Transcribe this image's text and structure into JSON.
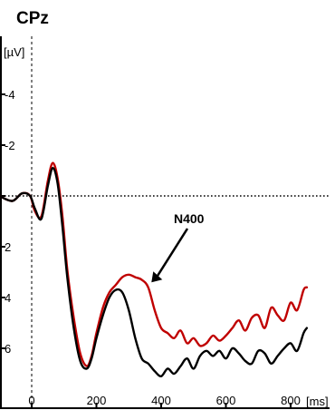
{
  "chart_data": {
    "type": "line",
    "title": "CPz",
    "ylabel": "[µV]",
    "xlabel": "[ms]",
    "y_inverted": true,
    "xlim": [
      -100,
      850
    ],
    "ylim": [
      -5,
      7.5
    ],
    "x_ticks": [
      0,
      200,
      400,
      600,
      800
    ],
    "x_tick_labels": [
      "0",
      "200",
      "400",
      "600",
      "800"
    ],
    "y_ticks": [
      -4,
      -2,
      0,
      2,
      4,
      6
    ],
    "y_tick_labels": [
      "-4",
      "-2",
      "",
      "2",
      "4",
      "6"
    ],
    "zero_line": "dotted",
    "onset_line": "dashed",
    "colors": {
      "red": "#c00000",
      "black": "#000000"
    },
    "annotation": {
      "text": "N400",
      "points_to": {
        "x": 370,
        "y": 3.4
      }
    },
    "series": [
      {
        "color": "#c00000",
        "x": [
          -100,
          -60,
          -30,
          -5,
          10,
          30,
          50,
          65,
          80,
          95,
          110,
          130,
          150,
          170,
          185,
          200,
          220,
          240,
          260,
          280,
          300,
          320,
          340,
          360,
          380,
          400,
          420,
          440,
          460,
          480,
          500,
          520,
          540,
          560,
          580,
          600,
          620,
          640,
          660,
          680,
          700,
          720,
          740,
          760,
          780,
          800,
          820,
          840,
          850
        ],
        "y": [
          0.0,
          0.2,
          -0.1,
          0.0,
          0.6,
          0.8,
          -0.6,
          -1.3,
          -0.7,
          0.8,
          2.9,
          4.8,
          6.2,
          6.7,
          6.3,
          5.4,
          4.4,
          3.8,
          3.5,
          3.2,
          3.1,
          3.2,
          3.3,
          3.6,
          4.5,
          5.2,
          5.4,
          5.6,
          5.3,
          5.8,
          5.6,
          5.9,
          5.8,
          5.5,
          5.7,
          5.5,
          5.2,
          4.9,
          5.3,
          4.8,
          4.7,
          5.2,
          4.4,
          4.7,
          4.9,
          4.2,
          4.5,
          3.7,
          3.6
        ]
      },
      {
        "color": "#000000",
        "x": [
          -100,
          -60,
          -30,
          -5,
          10,
          30,
          50,
          65,
          80,
          95,
          110,
          130,
          150,
          170,
          185,
          200,
          220,
          240,
          260,
          280,
          300,
          320,
          340,
          360,
          380,
          400,
          420,
          440,
          460,
          480,
          500,
          520,
          540,
          560,
          580,
          600,
          620,
          640,
          660,
          680,
          700,
          720,
          740,
          760,
          780,
          800,
          820,
          840,
          850
        ],
        "y": [
          0.0,
          0.2,
          -0.1,
          0.0,
          0.5,
          0.9,
          -0.4,
          -1.1,
          -0.5,
          1.2,
          3.2,
          5.2,
          6.5,
          6.8,
          6.4,
          5.6,
          4.7,
          4.0,
          3.7,
          3.8,
          4.5,
          5.6,
          6.4,
          6.6,
          6.9,
          7.1,
          6.8,
          7.0,
          6.7,
          6.4,
          6.8,
          6.3,
          6.1,
          6.3,
          6.1,
          6.4,
          6.0,
          6.2,
          6.5,
          6.6,
          6.1,
          6.2,
          6.6,
          6.3,
          6.0,
          5.8,
          6.1,
          5.4,
          5.2
        ]
      }
    ]
  }
}
